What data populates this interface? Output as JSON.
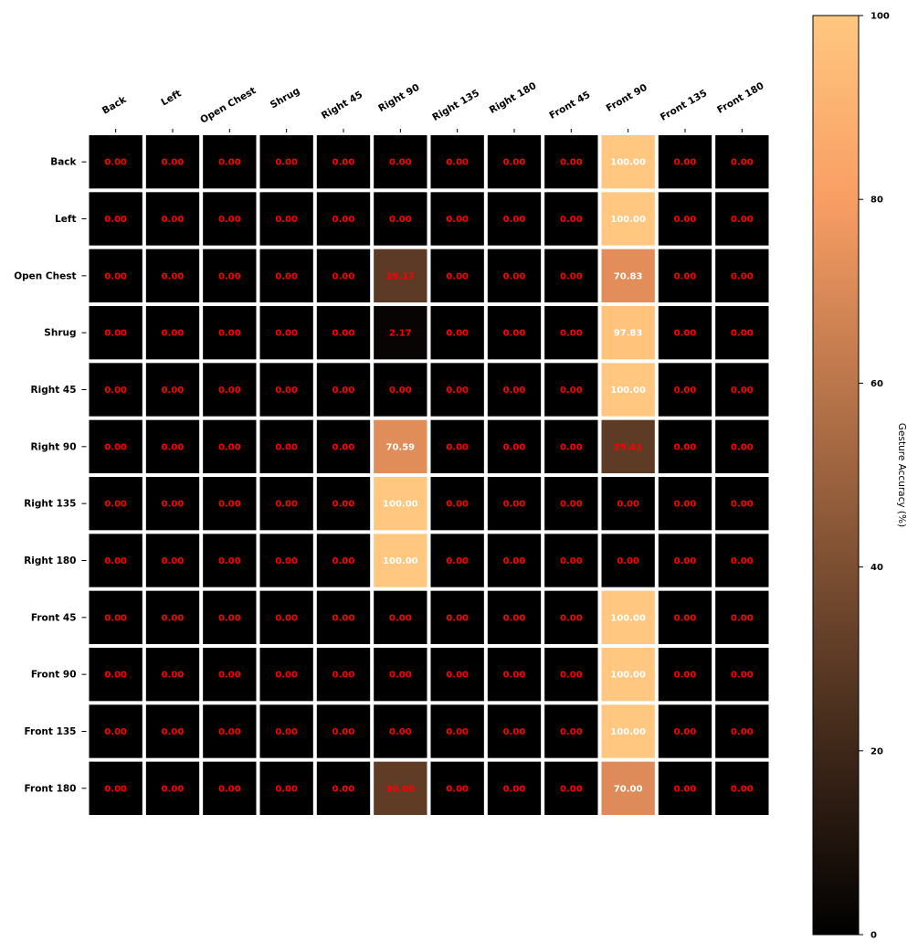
{
  "chart_data": {
    "type": "heatmap",
    "title": "",
    "xlabel": "",
    "ylabel": "",
    "x_categories": [
      "Back",
      "Left",
      "Open Chest",
      "Shrug",
      "Right 45",
      "Right 90",
      "Right 135",
      "Right 180",
      "Front 45",
      "Front 90",
      "Front 135",
      "Front 180"
    ],
    "y_categories": [
      "Back",
      "Left",
      "Open Chest",
      "Shrug",
      "Right 45",
      "Right 90",
      "Right 135",
      "Right 180",
      "Front 45",
      "Front 90",
      "Front 135",
      "Front 180"
    ],
    "values": [
      [
        0,
        0,
        0,
        0,
        0,
        0,
        0,
        0,
        0,
        100,
        0,
        0
      ],
      [
        0,
        0,
        0,
        0,
        0,
        0,
        0,
        0,
        0,
        100,
        0,
        0
      ],
      [
        0,
        0,
        0,
        0,
        0,
        29.17,
        0,
        0,
        0,
        70.83,
        0,
        0
      ],
      [
        0,
        0,
        0,
        0,
        0,
        2.17,
        0,
        0,
        0,
        97.83,
        0,
        0
      ],
      [
        0,
        0,
        0,
        0,
        0,
        0,
        0,
        0,
        0,
        100,
        0,
        0
      ],
      [
        0,
        0,
        0,
        0,
        0,
        70.59,
        0,
        0,
        0,
        29.41,
        0,
        0
      ],
      [
        0,
        0,
        0,
        0,
        0,
        100,
        0,
        0,
        0,
        0,
        0,
        0
      ],
      [
        0,
        0,
        0,
        0,
        0,
        100,
        0,
        0,
        0,
        0,
        0,
        0
      ],
      [
        0,
        0,
        0,
        0,
        0,
        0,
        0,
        0,
        0,
        100,
        0,
        0
      ],
      [
        0,
        0,
        0,
        0,
        0,
        0,
        0,
        0,
        0,
        100,
        0,
        0
      ],
      [
        0,
        0,
        0,
        0,
        0,
        0,
        0,
        0,
        0,
        100,
        0,
        0
      ],
      [
        0,
        0,
        0,
        0,
        0,
        30,
        0,
        0,
        0,
        70,
        0,
        0
      ]
    ],
    "value_format": "0.00",
    "vmin": 0,
    "vmax": 100,
    "colormap": "copper",
    "colorbar": {
      "label": "Gesture Accuracy (%)",
      "ticks": [
        0,
        20,
        40,
        60,
        80,
        100
      ],
      "position": "right"
    },
    "label_colors": {
      "low": "#ff0000",
      "high": "#ffffff",
      "threshold": 50
    },
    "grid": false
  }
}
